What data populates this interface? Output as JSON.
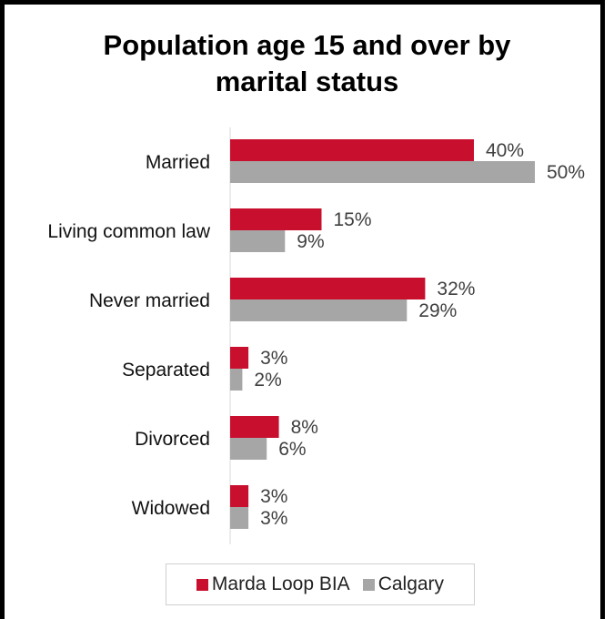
{
  "chart_data": {
    "type": "bar",
    "orientation": "horizontal",
    "title_lines": [
      "Population age 15 and over by",
      "marital status"
    ],
    "categories": [
      "Married",
      "Living common law",
      "Never married",
      "Separated",
      "Divorced",
      "Widowed"
    ],
    "series": [
      {
        "name": "Marda Loop BIA",
        "color": "#c8102e",
        "values": [
          40,
          15,
          32,
          3,
          8,
          3
        ],
        "labels": [
          "40%",
          "15%",
          "32%",
          "3%",
          "8%",
          "3%"
        ]
      },
      {
        "name": "Calgary",
        "color": "#a6a6a6",
        "values": [
          50,
          9,
          29,
          2,
          6,
          3
        ],
        "labels": [
          "50%",
          "9%",
          "29%",
          "2%",
          "6%",
          "3%"
        ]
      }
    ],
    "value_unit": "%",
    "xlim": [
      0,
      60
    ],
    "grid": false,
    "legend_position": "bottom"
  }
}
